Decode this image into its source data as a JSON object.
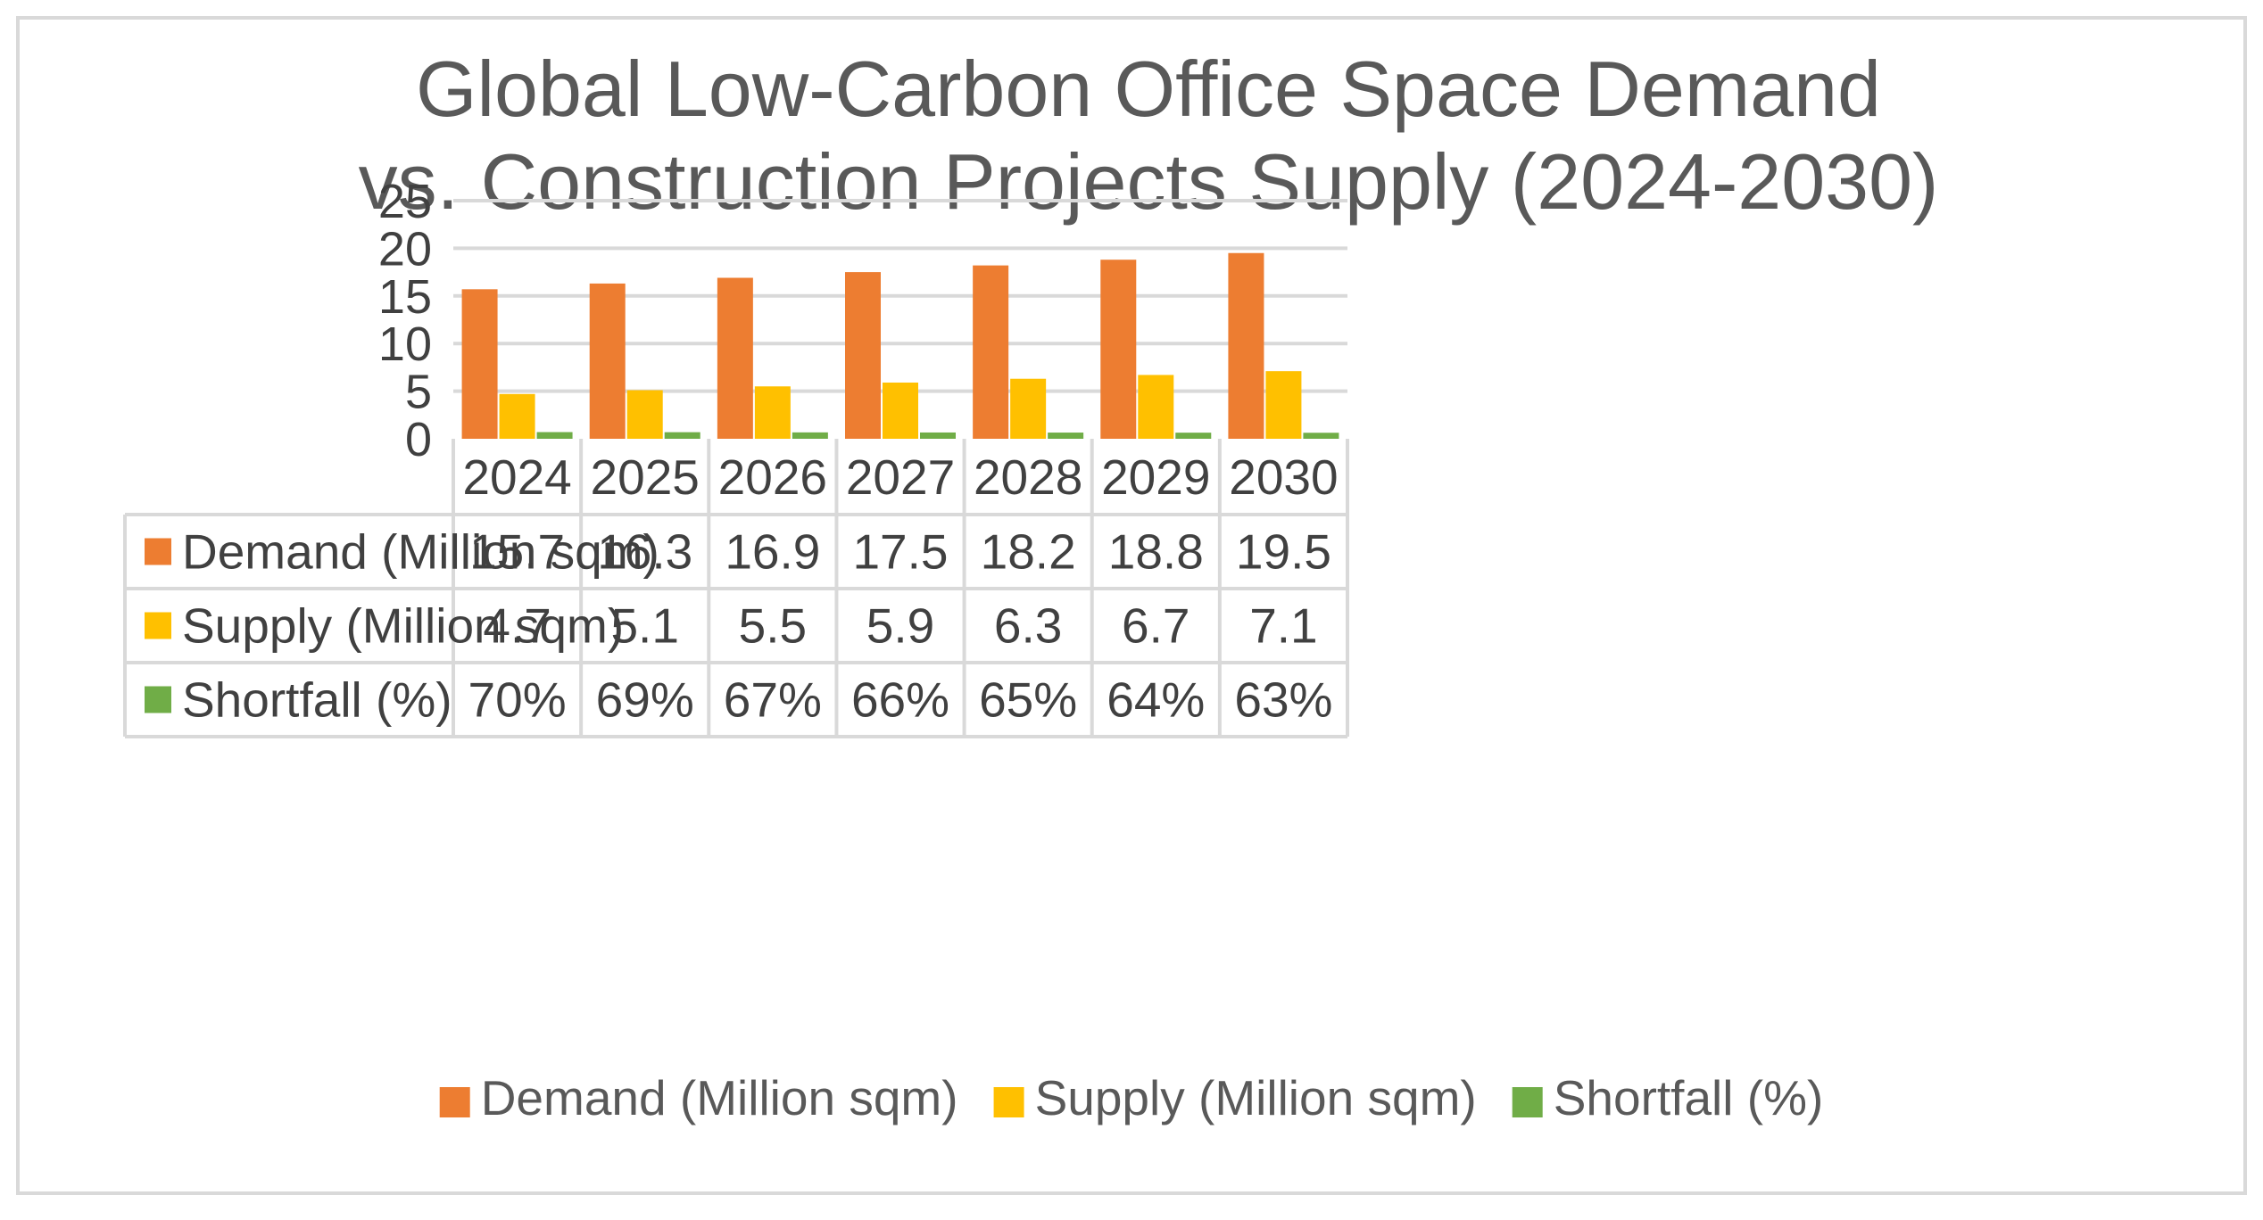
{
  "chart_data": {
    "type": "bar",
    "title": [
      "Global Low-Carbon Office Space Demand",
      "vs. Construction Projects Supply (2024-2030)"
    ],
    "categories": [
      "2024",
      "2025",
      "2026",
      "2027",
      "2028",
      "2029",
      "2030"
    ],
    "series": [
      {
        "name": "Demand (Million sqm)",
        "color": "#ED7D31",
        "values": [
          15.7,
          16.3,
          16.9,
          17.5,
          18.2,
          18.8,
          19.5
        ],
        "labels": [
          "15.7",
          "16.3",
          "16.9",
          "17.5",
          "18.2",
          "18.8",
          "19.5"
        ]
      },
      {
        "name": "Supply (Million sqm)",
        "color": "#FFC000",
        "values": [
          4.7,
          5.1,
          5.5,
          5.9,
          6.3,
          6.7,
          7.1
        ],
        "labels": [
          "4.7",
          "5.1",
          "5.5",
          "5.9",
          "6.3",
          "6.7",
          "7.1"
        ]
      },
      {
        "name": "Shortfall (%)",
        "color": "#70AD47",
        "values": [
          0.7,
          0.69,
          0.67,
          0.66,
          0.65,
          0.64,
          0.63
        ],
        "labels": [
          "70%",
          "69%",
          "67%",
          "66%",
          "65%",
          "64%",
          "63%"
        ]
      }
    ],
    "yticks": [
      "0",
      "5",
      "10",
      "15",
      "20",
      "25"
    ],
    "ylim": [
      0,
      25
    ],
    "grid": true,
    "data_table": true,
    "legend": "bottom"
  }
}
